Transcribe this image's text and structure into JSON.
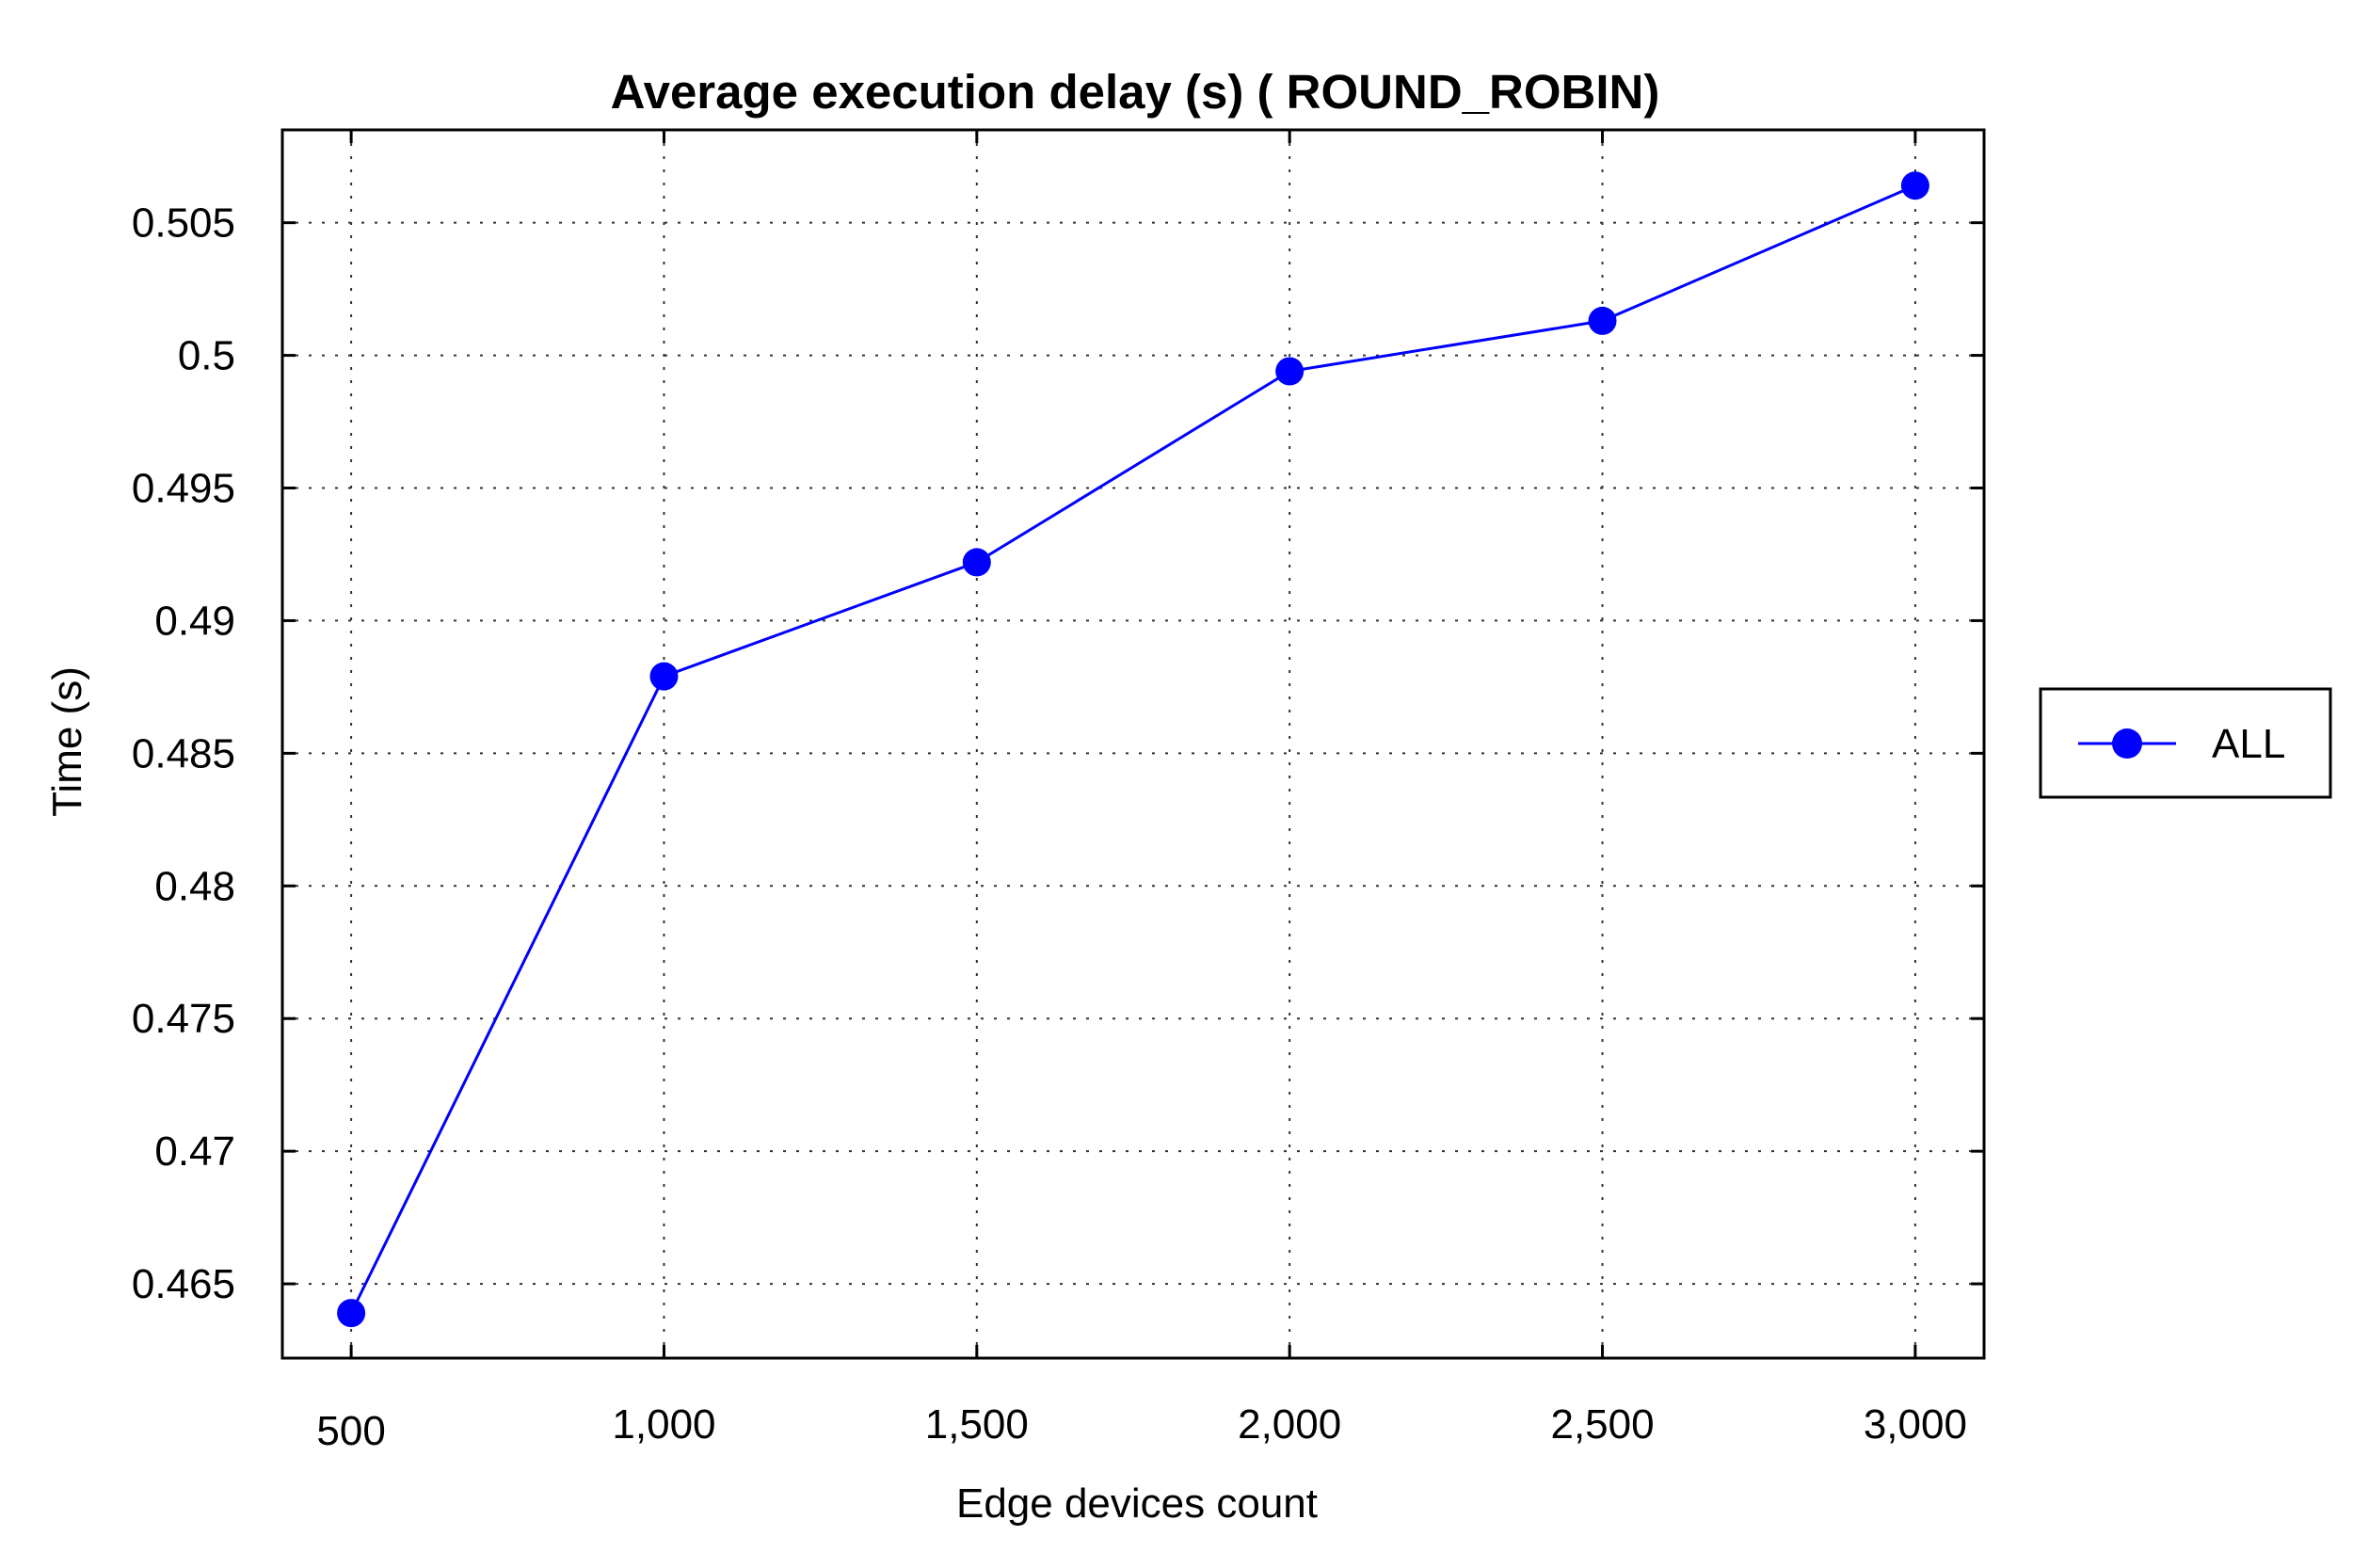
{
  "chart_data": {
    "type": "line",
    "title": "Average execution delay (s) ( ROUND_ROBIN)",
    "xlabel": "Edge devices count",
    "ylabel": "Time (s)",
    "x": [
      500,
      1000,
      1500,
      2000,
      2500,
      3000
    ],
    "x_tick_labels": [
      "500",
      "1,000",
      "1,500",
      "2,000",
      "2,500",
      "3,000"
    ],
    "y_ticks": [
      0.465,
      0.47,
      0.475,
      0.48,
      0.485,
      0.49,
      0.495,
      0.5,
      0.505
    ],
    "y_tick_labels": [
      "0.465",
      "0.47",
      "0.475",
      "0.48",
      "0.485",
      "0.49",
      "0.495",
      "0.5",
      "0.505"
    ],
    "xlim": [
      390,
      3110
    ],
    "ylim": [
      0.4622,
      0.5085
    ],
    "grid": true,
    "legend_position": "right",
    "series": [
      {
        "name": "ALL",
        "color": "#0000ff",
        "marker": "circle",
        "values": [
          0.4639,
          0.4879,
          0.4922,
          0.4994,
          0.5013,
          0.5064
        ]
      }
    ]
  }
}
